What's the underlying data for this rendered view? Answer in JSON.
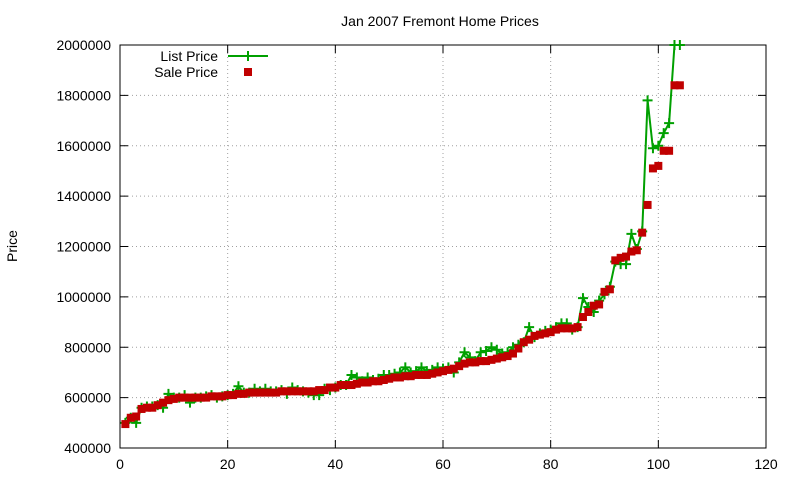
{
  "chart_data": {
    "type": "line",
    "title": "Jan 2007 Fremont Home Prices",
    "xlabel": "",
    "ylabel": "Price",
    "xlim": [
      0,
      120
    ],
    "ylim": [
      400000,
      2000000
    ],
    "xticks": [
      0,
      20,
      40,
      60,
      80,
      100,
      120
    ],
    "yticks": [
      400000,
      600000,
      800000,
      1000000,
      1200000,
      1400000,
      1600000,
      1800000,
      2000000
    ],
    "grid": true,
    "legend_position": "top-left",
    "series": [
      {
        "name": "List Price",
        "color": "#00a000",
        "marker": "plus",
        "x": [
          1,
          2,
          3,
          4,
          5,
          6,
          7,
          8,
          9,
          10,
          11,
          12,
          13,
          14,
          15,
          16,
          17,
          18,
          19,
          20,
          21,
          22,
          23,
          24,
          25,
          26,
          27,
          28,
          29,
          30,
          31,
          32,
          33,
          34,
          35,
          36,
          37,
          38,
          39,
          40,
          41,
          42,
          43,
          44,
          45,
          46,
          47,
          48,
          49,
          50,
          51,
          52,
          53,
          54,
          55,
          56,
          57,
          58,
          59,
          60,
          61,
          62,
          63,
          64,
          65,
          66,
          67,
          68,
          69,
          70,
          71,
          72,
          73,
          74,
          75,
          76,
          77,
          78,
          79,
          80,
          81,
          82,
          83,
          84,
          85,
          86,
          87,
          88,
          89,
          90,
          91,
          92,
          93,
          94,
          95,
          96,
          97,
          98,
          99,
          100,
          101,
          102,
          103,
          104
        ],
        "y": [
          500000,
          520000,
          500000,
          560000,
          565000,
          565000,
          570000,
          560000,
          615000,
          600000,
          600000,
          610000,
          580000,
          600000,
          600000,
          605000,
          610000,
          600000,
          605000,
          610000,
          615000,
          645000,
          620000,
          620000,
          635000,
          625000,
          635000,
          625000,
          625000,
          630000,
          615000,
          640000,
          630000,
          625000,
          620000,
          610000,
          610000,
          635000,
          630000,
          640000,
          650000,
          650000,
          690000,
          680000,
          665000,
          680000,
          670000,
          675000,
          690000,
          690000,
          695000,
          700000,
          720000,
          700000,
          705000,
          720000,
          705000,
          710000,
          720000,
          715000,
          720000,
          700000,
          740000,
          780000,
          760000,
          745000,
          780000,
          785000,
          800000,
          790000,
          775000,
          780000,
          800000,
          810000,
          820000,
          880000,
          840000,
          855000,
          865000,
          870000,
          880000,
          895000,
          895000,
          870000,
          880000,
          995000,
          960000,
          940000,
          985000,
          1010000,
          1040000,
          1140000,
          1130000,
          1130000,
          1250000,
          1190000,
          1260000,
          1780000,
          1590000,
          1600000,
          1650000,
          1690000,
          2000000,
          2000000
        ]
      },
      {
        "name": "Sale Price",
        "color": "#c00000",
        "marker": "square",
        "x": [
          1,
          2,
          3,
          4,
          5,
          6,
          7,
          8,
          9,
          10,
          11,
          12,
          13,
          14,
          15,
          16,
          17,
          18,
          19,
          20,
          21,
          22,
          23,
          24,
          25,
          26,
          27,
          28,
          29,
          30,
          31,
          32,
          33,
          34,
          35,
          36,
          37,
          38,
          39,
          40,
          41,
          42,
          43,
          44,
          45,
          46,
          47,
          48,
          49,
          50,
          51,
          52,
          53,
          54,
          55,
          56,
          57,
          58,
          59,
          60,
          61,
          62,
          63,
          64,
          65,
          66,
          67,
          68,
          69,
          70,
          71,
          72,
          73,
          74,
          75,
          76,
          77,
          78,
          79,
          80,
          81,
          82,
          83,
          84,
          85,
          86,
          87,
          88,
          89,
          90,
          91,
          92,
          93,
          94,
          95,
          96,
          97,
          98,
          99,
          100,
          101,
          102,
          103,
          104
        ],
        "y": [
          495000,
          520000,
          525000,
          555000,
          560000,
          560000,
          570000,
          580000,
          590000,
          595000,
          600000,
          600000,
          600000,
          600000,
          600000,
          600000,
          605000,
          605000,
          605000,
          610000,
          610000,
          615000,
          615000,
          620000,
          620000,
          620000,
          620000,
          620000,
          620000,
          625000,
          625000,
          625000,
          625000,
          625000,
          625000,
          625000,
          630000,
          630000,
          640000,
          640000,
          650000,
          650000,
          650000,
          655000,
          660000,
          660000,
          665000,
          665000,
          670000,
          675000,
          680000,
          680000,
          685000,
          685000,
          690000,
          690000,
          690000,
          695000,
          700000,
          705000,
          710000,
          715000,
          725000,
          735000,
          740000,
          740000,
          745000,
          745000,
          750000,
          755000,
          760000,
          765000,
          775000,
          795000,
          820000,
          830000,
          845000,
          850000,
          855000,
          860000,
          870000,
          875000,
          875000,
          875000,
          880000,
          920000,
          940000,
          965000,
          970000,
          1020000,
          1030000,
          1145000,
          1155000,
          1160000,
          1180000,
          1185000,
          1255000,
          1365000,
          1510000,
          1520000,
          1580000,
          1580000,
          1840000,
          1840000
        ]
      }
    ]
  }
}
